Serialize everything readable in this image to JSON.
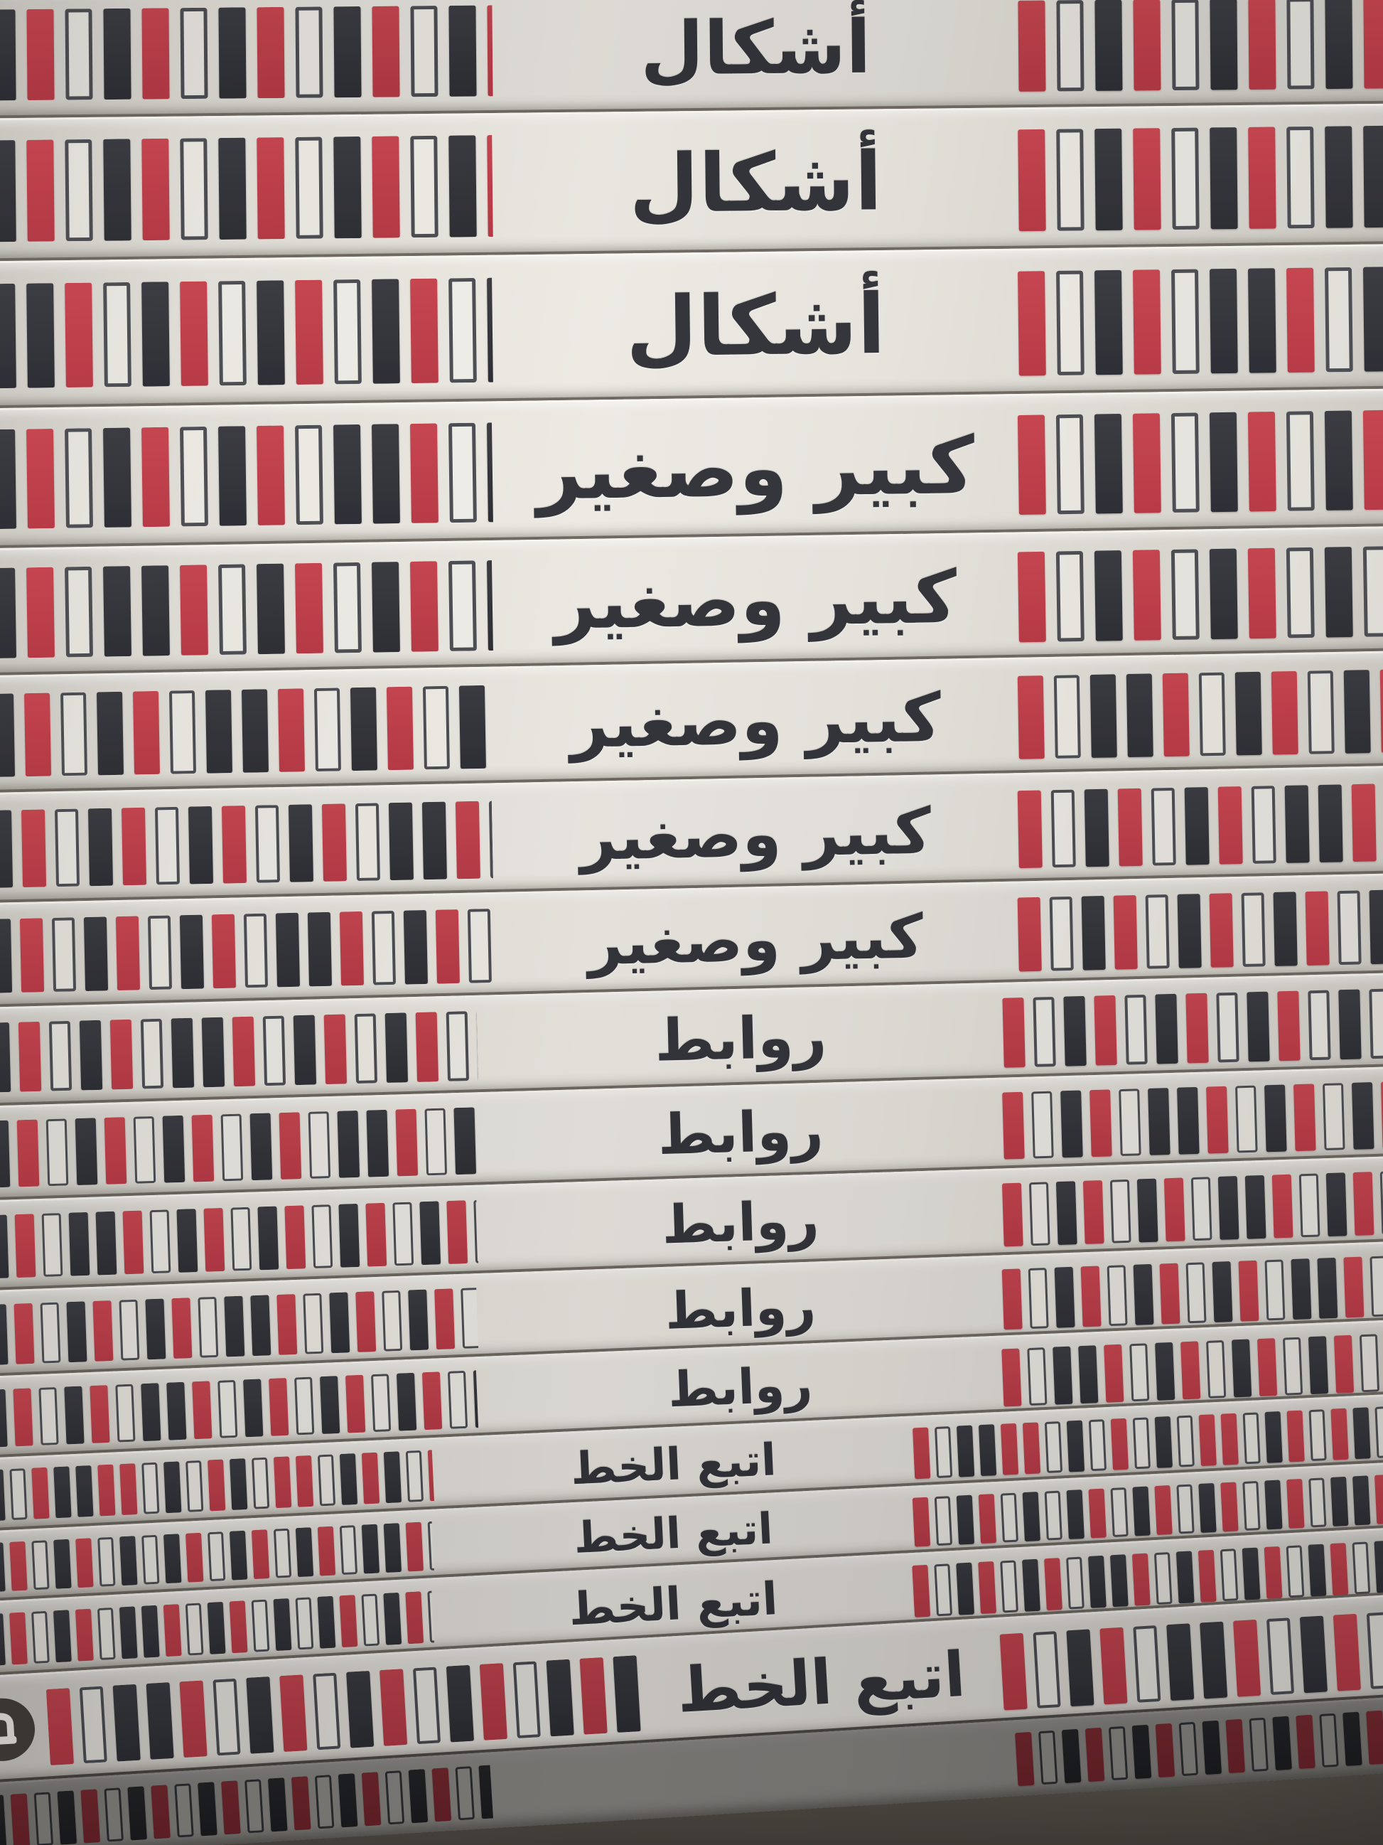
{
  "colors": {
    "bar_dark": "#333439",
    "bar_red": "#bf4049",
    "bar_outline_border": "#4d4e54",
    "spine_background": "#e7e4de",
    "title_text": "#34353b",
    "ambient_background": "#756f68"
  },
  "logo": {
    "glyph": "هـ",
    "style": "white letterform in dark circle badge"
  },
  "spines": [
    {
      "title": "أشكال",
      "left_bars": "KROKROKROKROKROKROKROKRO",
      "right_bars": "ROKROKROKROKROKROKROKROK",
      "has_logo": false
    },
    {
      "title": "أشكال",
      "left_bars": "KROKROKROKROKROKROKKROKO",
      "right_bars": "ROKROKROKKROKROKROKROKRO",
      "has_logo": false
    },
    {
      "title": "أشكال",
      "left_bars": "KKROKROKROKROKROKKROKROK",
      "right_bars": "ROKROKKROKROKROKOKROKROK",
      "has_logo": false
    },
    {
      "title": "كبير وصغير",
      "left_bars": "KROKROKROKKROKROKROKROOK",
      "right_bars": "ROKROKROKROKKROKROKROKRO",
      "has_logo": false
    },
    {
      "title": "كبير وصغير",
      "left_bars": "KROKKROKROKROKROKROKKROK",
      "right_bars": "ROKROKROKOKROKROKKROKROK",
      "has_logo": false
    },
    {
      "title": "كبير وصغير",
      "left_bars": "KROKROKKROKROKROKROKOKRO",
      "right_bars": "ROKKROKROKROKROKROKROKRO",
      "has_logo": false
    },
    {
      "title": "كبير وصغير",
      "left_bars": "KROKROKROKROKKROKROKROKR",
      "right_bars": "ROKROKROKKROKROKROKOKROK",
      "has_logo": false
    },
    {
      "title": "كبير وصغير",
      "left_bars": "KROKROKROKKROKROKROKOKRO",
      "right_bars": "ROKROKROKROKKROKROKROKRO",
      "has_logo": false
    },
    {
      "title": "روابط",
      "left_bars": "KROKROKKROKROKROKROKKROK",
      "right_bars": "ROKROKROKROKOKROKKROKROK",
      "has_logo": false
    },
    {
      "title": "روابط",
      "left_bars": "KROKROKROKROKKROKROKOKRO",
      "right_bars": "ROKROKKROKROKROKROKROKRO",
      "has_logo": false
    },
    {
      "title": "روابط",
      "left_bars": "KROKKROKROKROKROKROKKROK",
      "right_bars": "ROKROKROKKROKROKROKROKRO",
      "has_logo": false
    },
    {
      "title": "روابط",
      "left_bars": "KROKROKROKKROKROKROKOKRO",
      "right_bars": "ROKROKROKROKKROKROKOKROK",
      "has_logo": false
    },
    {
      "title": "روابط",
      "left_bars": "KROKROKKROKROKROKROKROKR",
      "right_bars": "ROKKROKROKROKROKROKROKRO",
      "has_logo": false
    },
    {
      "title": "اتبع الخط",
      "left_bars": "KORKKRROKORKORROKRKOROKR",
      "right_bars": "ROKKRROKOROKORROKRORKORO",
      "has_logo": false
    },
    {
      "title": "اتبع الخط",
      "left_bars": "KROKROKOKROKROKROKKROKRO",
      "right_bars": "ROKROKOKROKROKROKROKKROK",
      "has_logo": false
    },
    {
      "title": "اتبع الخط",
      "left_bars": "KROKROKKROKROKOKROKROKRO",
      "right_bars": "ROKROKROKKROKROKROKROKRO",
      "has_logo": false
    },
    {
      "title": "اتبع الخط",
      "left_bars": "ROKKROKROKROKROKRKORROKO",
      "right_bars": "ROKROKKROKROKROKKROKROKR",
      "has_logo": true
    },
    {
      "title": "",
      "left_bars": "KROKROKROKROKROKROKROKRO",
      "right_bars": "ROKROKROKROKROKROKROKROK",
      "has_logo": false
    }
  ]
}
